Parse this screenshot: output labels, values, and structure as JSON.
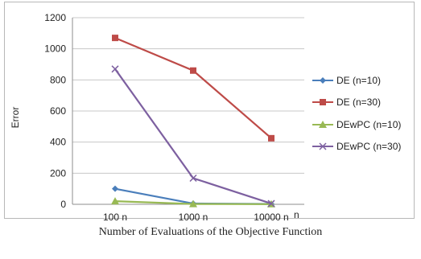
{
  "chart_data": {
    "type": "line",
    "categories": [
      "100 n",
      "1000 n",
      "10000 n"
    ],
    "xlabel_suffix": "n",
    "ylabel": "Error",
    "ylim": [
      0,
      1200
    ],
    "yticks": [
      "0",
      "200",
      "400",
      "600",
      "800",
      "1000",
      "1200"
    ],
    "grid": true,
    "legend_position": "right",
    "series": [
      {
        "name": "DE  (n=10)",
        "values": [
          100,
          5,
          2
        ],
        "color": "#4a7ebb",
        "marker": "diamond"
      },
      {
        "name": "DE  (n=30)",
        "values": [
          1070,
          860,
          425
        ],
        "color": "#be4b48",
        "marker": "square"
      },
      {
        "name": "DEwPC (n=10)",
        "values": [
          20,
          2,
          1
        ],
        "color": "#98b954",
        "marker": "triangle"
      },
      {
        "name": "DEwPC (n=30)",
        "values": [
          870,
          168,
          5
        ],
        "color": "#7d60a0",
        "marker": "x"
      }
    ]
  },
  "caption": "Number of Evaluations of the Objective Function"
}
